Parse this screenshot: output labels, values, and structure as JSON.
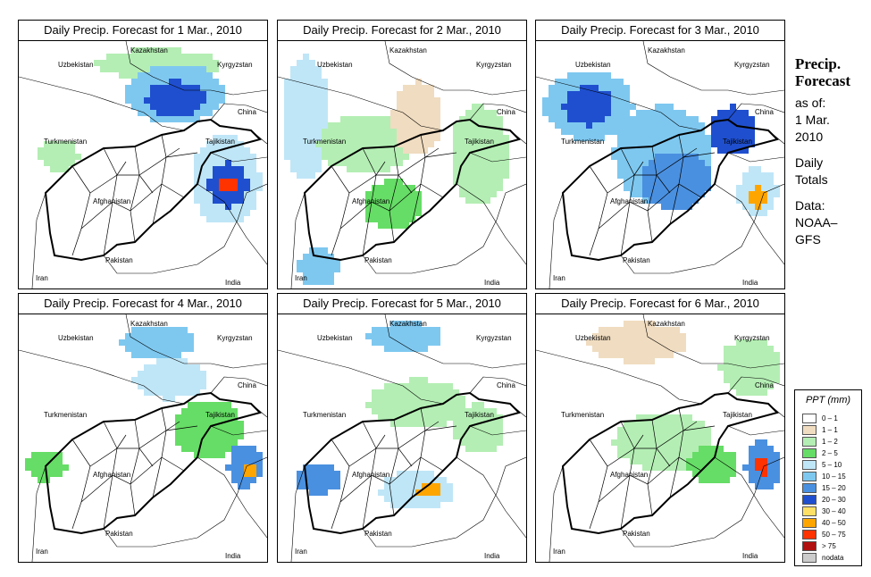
{
  "panels": [
    {
      "title": "Daily Precip. Forecast for  1 Mar., 2010"
    },
    {
      "title": "Daily Precip. Forecast for  2 Mar., 2010"
    },
    {
      "title": "Daily Precip. Forecast for  3 Mar., 2010"
    },
    {
      "title": "Daily Precip. Forecast for  4 Mar., 2010"
    },
    {
      "title": "Daily Precip. Forecast for  5 Mar., 2010"
    },
    {
      "title": "Daily Precip. Forecast for  6 Mar., 2010"
    }
  ],
  "countries": {
    "uzbekistan": "Uzbekistan",
    "kazakhstan": "Kazakhstan",
    "kyrgyzstan": "Kyrgyzstan",
    "china": "China",
    "turkmenistan": "Turkmenistan",
    "tajikistan": "Tajikistan",
    "afghanistan": "Afghanistan",
    "iran": "Iran",
    "pakistan": "Pakistan",
    "india": "India"
  },
  "side": {
    "title_line1": "Precip.",
    "title_line2": "Forecast",
    "asof_line1": "as of:",
    "asof_line2": "1 Mar.",
    "asof_line3": "2010",
    "totals_line1": "Daily",
    "totals_line2": "Totals",
    "data_line1": "Data:",
    "data_line2": "NOAA–",
    "data_line3": "GFS"
  },
  "legend": {
    "title": "PPT (mm)",
    "items": [
      {
        "label": "0 – 1",
        "color": "#ffffff"
      },
      {
        "label": "1 – 1",
        "color": "#f0dcc0"
      },
      {
        "label": "1 – 2",
        "color": "#b4eeb4"
      },
      {
        "label": "2 – 5",
        "color": "#66dd66"
      },
      {
        "label": "5 – 10",
        "color": "#bfe6f7"
      },
      {
        "label": "10 – 15",
        "color": "#7ec8f0"
      },
      {
        "label": "15 – 20",
        "color": "#4a90e0"
      },
      {
        "label": "20 – 30",
        "color": "#1f4fcf"
      },
      {
        "label": "30 – 40",
        "color": "#ffe066"
      },
      {
        "label": "40 – 50",
        "color": "#ffa500"
      },
      {
        "label": "50 – 75",
        "color": "#ff3300"
      },
      {
        "label": "> 75",
        "color": "#b01010"
      },
      {
        "label": "nodata",
        "color": "#cccccc"
      }
    ]
  }
}
